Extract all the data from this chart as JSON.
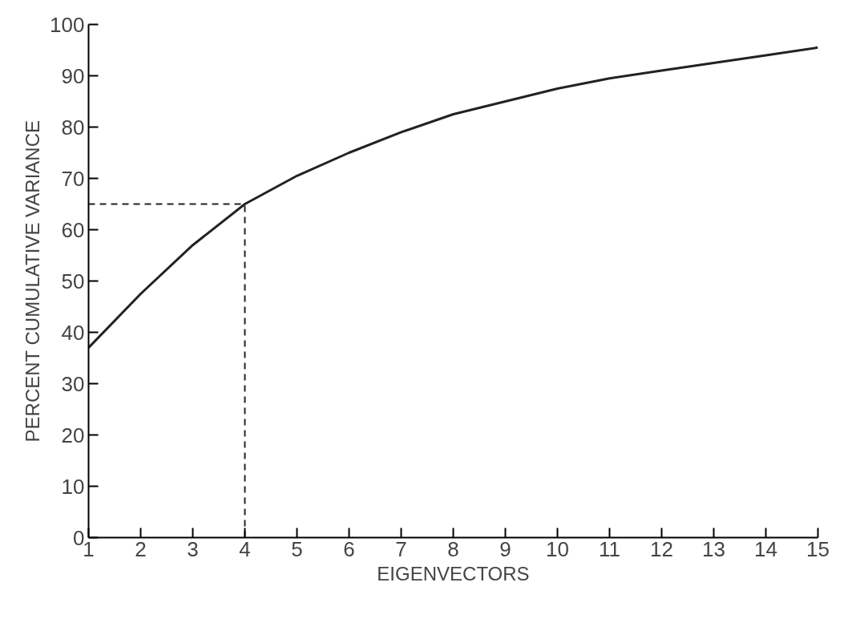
{
  "chart_data": {
    "type": "line",
    "xlabel": "EIGENVECTORS",
    "ylabel": "PERCENT CUMULATIVE VARIANCE",
    "x": [
      1,
      2,
      3,
      4,
      5,
      6,
      7,
      8,
      9,
      10,
      11,
      12,
      13,
      14,
      15
    ],
    "series": [
      {
        "color": "#222222",
        "values": [
          37,
          47.5,
          57,
          65,
          70.5,
          75,
          79,
          82.5,
          85,
          87.5,
          89.5,
          91,
          92.5,
          94,
          95.5
        ]
      }
    ],
    "xlim": [
      1,
      15
    ],
    "ylim": [
      0,
      100
    ],
    "xticks": [
      1,
      2,
      3,
      4,
      5,
      6,
      7,
      8,
      9,
      10,
      11,
      12,
      13,
      14,
      15
    ],
    "yticks": [
      0,
      10,
      20,
      30,
      40,
      50,
      60,
      70,
      80,
      90,
      100
    ],
    "ref_lines": [
      {
        "axis": "y",
        "value": 65,
        "color": "#222222",
        "line_style": "dashed"
      },
      {
        "axis": "x",
        "value": 4,
        "color": "#222222",
        "line_style": "dashed"
      }
    ],
    "grid": false,
    "marker": "none",
    "line_style": "solid"
  }
}
